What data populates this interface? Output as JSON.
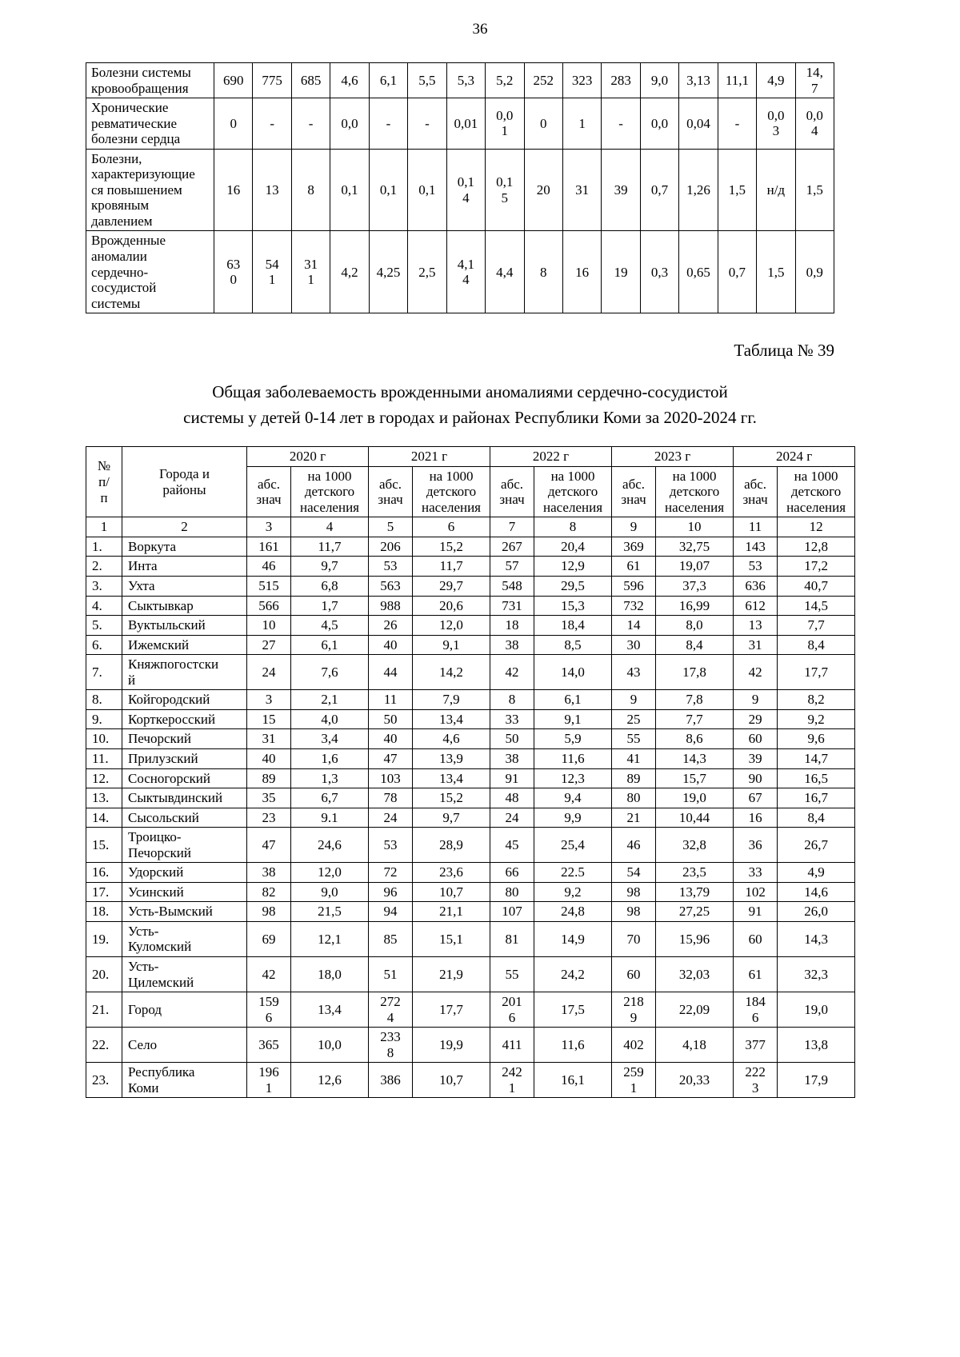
{
  "page": {
    "number": "36",
    "table39_caption": "Таблица № 39",
    "title": "Общая заболеваемость врожденными аномалиями сердечно-сосудистой\nсистемы у детей 0-14 лет в городах и районах Республики Коми за 2020-2024 гг."
  },
  "table_top": {
    "rows": [
      {
        "label": "Болезни системы\nкровообращения",
        "values": [
          "690",
          "775",
          "685",
          "4,6",
          "6,1",
          "5,5",
          "5,3",
          "5,2",
          "252",
          "323",
          "283",
          "9,0",
          "3,13",
          "11,1",
          "4,9",
          "14,\n7"
        ]
      },
      {
        "label": "Хронические\nревматические\nболезни сердца",
        "values": [
          "0",
          "-",
          "-",
          "0,0",
          "-",
          "-",
          "0,01",
          "0,0\n1",
          "0",
          "1",
          "-",
          "0,0",
          "0,04",
          "-",
          "0,0\n3",
          "0,0\n4"
        ]
      },
      {
        "label": "Болезни,\nхарактеризующие\nся повышением\nкровяным\nдавлением",
        "values": [
          "16",
          "13",
          "8",
          "0,1",
          "0,1",
          "0,1",
          "0,1\n4",
          "0,1\n5",
          "20",
          "31",
          "39",
          "0,7",
          "1,26",
          "1,5",
          "н/д",
          "1,5"
        ]
      },
      {
        "label": "Врожденные\nаномалии\nсердечно-\nсосудистой\nсистемы",
        "values": [
          "63\n0",
          "54\n1",
          "31\n1",
          "4,2",
          "4,25",
          "2,5",
          "4,1\n4",
          "4,4",
          "8",
          "16",
          "19",
          "0,3",
          "0,65",
          "0,7",
          "1,5",
          "0,9"
        ]
      }
    ]
  },
  "table39": {
    "header": {
      "num": "№\nп/\nп",
      "cities": "Города и\nрайоны",
      "years": [
        "2020 г",
        "2021 г",
        "2022 г",
        "2023 г",
        "2024 г"
      ],
      "abs": "абс.\nзнач",
      "per1000": "на 1000\nдетского\nнаселения",
      "col_numbers": [
        "1",
        "2",
        "3",
        "4",
        "5",
        "6",
        "7",
        "8",
        "9",
        "10",
        "11",
        "12"
      ]
    },
    "rows": [
      {
        "num": "1.",
        "city": "Воркута",
        "values": [
          "161",
          "11,7",
          "206",
          "15,2",
          "267",
          "20,4",
          "369",
          "32,75",
          "143",
          "12,8"
        ]
      },
      {
        "num": "2.",
        "city": "Инта",
        "values": [
          "46",
          "9,7",
          "53",
          "11,7",
          "57",
          "12,9",
          "61",
          "19,07",
          "53",
          "17,2"
        ]
      },
      {
        "num": "3.",
        "city": "Ухта",
        "values": [
          "515",
          "6,8",
          "563",
          "29,7",
          "548",
          "29,5",
          "596",
          "37,3",
          "636",
          "40,7"
        ]
      },
      {
        "num": "4.",
        "city": "Сыктывкар",
        "values": [
          "566",
          "1,7",
          "988",
          "20,6",
          "731",
          "15,3",
          "732",
          "16,99",
          "612",
          "14,5"
        ]
      },
      {
        "num": "5.",
        "city": "Вуктыльский",
        "values": [
          "10",
          "4,5",
          "26",
          "12,0",
          "18",
          "18,4",
          "14",
          "8,0",
          "13",
          "7,7"
        ]
      },
      {
        "num": "6.",
        "city": "Ижемский",
        "values": [
          "27",
          "6,1",
          "40",
          "9,1",
          "38",
          "8,5",
          "30",
          "8,4",
          "31",
          "8,4"
        ]
      },
      {
        "num": "7.",
        "city": "Княжпогостски\nй",
        "values": [
          "24",
          "7,6",
          "44",
          "14,2",
          "42",
          "14,0",
          "43",
          "17,8",
          "42",
          "17,7"
        ]
      },
      {
        "num": "8.",
        "city": "Койгородский",
        "values": [
          "3",
          "2,1",
          "11",
          "7,9",
          "8",
          "6,1",
          "9",
          "7,8",
          "9",
          "8,2"
        ]
      },
      {
        "num": "9.",
        "city": "Корткеросский",
        "values": [
          "15",
          "4,0",
          "50",
          "13,4",
          "33",
          "9,1",
          "25",
          "7,7",
          "29",
          "9,2"
        ]
      },
      {
        "num": "10.",
        "city": "Печорский",
        "values": [
          "31",
          "3,4",
          "40",
          "4,6",
          "50",
          "5,9",
          "55",
          "8,6",
          "60",
          "9,6"
        ]
      },
      {
        "num": "11.",
        "city": "Прилузский",
        "values": [
          "40",
          "1,6",
          "47",
          "13,9",
          "38",
          "11,6",
          "41",
          "14,3",
          "39",
          "14,7"
        ]
      },
      {
        "num": "12.",
        "city": "Сосногорский",
        "values": [
          "89",
          "1,3",
          "103",
          "13,4",
          "91",
          "12,3",
          "89",
          "15,7",
          "90",
          "16,5"
        ]
      },
      {
        "num": "13.",
        "city": "Сыктывдинский",
        "values": [
          "35",
          "6,7",
          "78",
          "15,2",
          "48",
          "9,4",
          "80",
          "19,0",
          "67",
          "16,7"
        ]
      },
      {
        "num": "14.",
        "city": "Сысольский",
        "values": [
          "23",
          "9.1",
          "24",
          "9,7",
          "24",
          "9,9",
          "21",
          "10,44",
          "16",
          "8,4"
        ]
      },
      {
        "num": "15.",
        "city": "Троицко-\nПечорский",
        "values": [
          "47",
          "24,6",
          "53",
          "28,9",
          "45",
          "25,4",
          "46",
          "32,8",
          "36",
          "26,7"
        ]
      },
      {
        "num": "16.",
        "city": "Удорский",
        "values": [
          "38",
          "12,0",
          "72",
          "23,6",
          "66",
          "22.5",
          "54",
          "23,5",
          "33",
          "4,9"
        ]
      },
      {
        "num": "17.",
        "city": "Усинский",
        "values": [
          "82",
          "9,0",
          "96",
          "10,7",
          "80",
          "9,2",
          "98",
          "13,79",
          "102",
          "14,6"
        ]
      },
      {
        "num": "18.",
        "city": "Усть-Вымский",
        "values": [
          "98",
          "21,5",
          "94",
          "21,1",
          "107",
          "24,8",
          "98",
          "27,25",
          "91",
          "26,0"
        ]
      },
      {
        "num": "19.",
        "city": "Усть-\nКуломский",
        "values": [
          "69",
          "12,1",
          "85",
          "15,1",
          "81",
          "14,9",
          "70",
          "15,96",
          "60",
          "14,3"
        ]
      },
      {
        "num": "20.",
        "city": "Усть-\nЦилемский",
        "values": [
          "42",
          "18,0",
          "51",
          "21,9",
          "55",
          "24,2",
          "60",
          "32,03",
          "61",
          "32,3"
        ]
      },
      {
        "num": "21.",
        "city": "Город",
        "values": [
          "159\n6",
          "13,4",
          "272\n4",
          "17,7",
          "201\n6",
          "17,5",
          "218\n9",
          "22,09",
          "184\n6",
          "19,0"
        ]
      },
      {
        "num": "22.",
        "city": "Село",
        "values": [
          "365",
          "10,0",
          "233\n8",
          "19,9",
          "411",
          "11,6",
          "402",
          "4,18",
          "377",
          "13,8"
        ]
      },
      {
        "num": "23.",
        "city": "Республика\nКоми",
        "values": [
          "196\n1",
          "12,6",
          "386",
          "10,7",
          "242\n1",
          "16,1",
          "259\n1",
          "20,33",
          "222\n3",
          "17,9"
        ]
      }
    ]
  }
}
